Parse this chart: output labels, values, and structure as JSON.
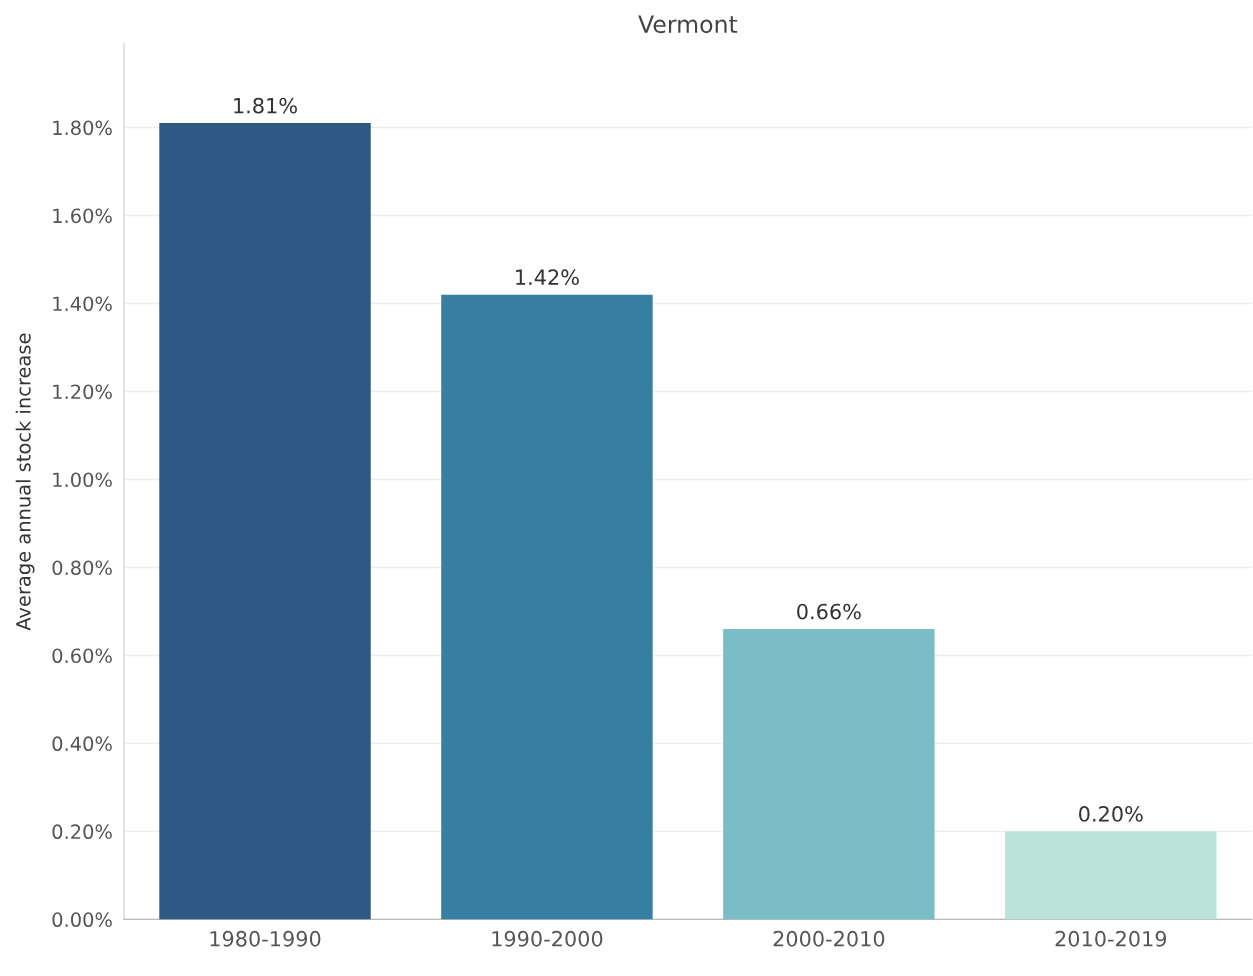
{
  "chart_data": {
    "type": "bar",
    "title": "Vermont",
    "ylabel": "Average annual stock increase",
    "categories": [
      "1980-1990",
      "1990-2000",
      "2000-2010",
      "2010-2019"
    ],
    "values": [
      1.81,
      1.42,
      0.66,
      0.2
    ],
    "colors": [
      "#2e5984",
      "#367ea2",
      "#7abdc7",
      "#bce3d9"
    ],
    "value_labels": [
      "1.81%",
      "1.42%",
      "0.66%",
      "0.20%"
    ],
    "ylim": [
      0,
      1.99
    ],
    "yticks": [
      {
        "value": 0,
        "label": "0.00%"
      },
      {
        "value": 0.2,
        "label": "0.20%"
      },
      {
        "value": 0.4,
        "label": "0.40%"
      },
      {
        "value": 0.6,
        "label": "0.60%"
      },
      {
        "value": 0.8,
        "label": "0.80%"
      },
      {
        "value": 1.0,
        "label": "1.00%"
      },
      {
        "value": 1.2,
        "label": "1.20%"
      },
      {
        "value": 1.4,
        "label": "1.40%"
      },
      {
        "value": 1.6,
        "label": "1.60%"
      },
      {
        "value": 1.8,
        "label": "1.80%"
      }
    ],
    "grid": "y",
    "legend": false
  }
}
